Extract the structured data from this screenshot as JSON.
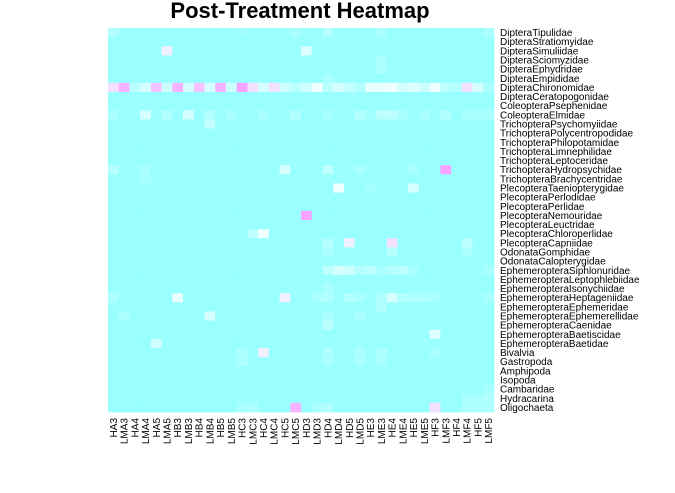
{
  "chart_data": {
    "type": "heatmap",
    "title": "Post-Treatment Heatmap",
    "columns": [
      "HA3",
      "LMA3",
      "HA4",
      "LMA4",
      "HA5",
      "LMA5",
      "HB3",
      "LMB3",
      "HB4",
      "LMB4",
      "HB5",
      "LMB5",
      "HC3",
      "LMC3",
      "HC4",
      "LMC4",
      "HC5",
      "LMC5",
      "HD3",
      "LMD3",
      "HD4",
      "LMD4",
      "HD5",
      "LMD5",
      "HE3",
      "LME3",
      "HE4",
      "LME4",
      "HE5",
      "LME5",
      "HF3",
      "LMF3",
      "HF4",
      "LMF4",
      "HF5",
      "LMF5"
    ],
    "rows": [
      "DipteraTipulidae",
      "DipteraStratiomyidae",
      "DipteraSimuliidae",
      "DipteraSciomyzidae",
      "DipteraEphydridae",
      "DipteraEmpididae",
      "DipteraChironomidae",
      "DipteraCeratopogonidae",
      "ColeopteraPsephenidae",
      "ColeopteraElmidae",
      "TrichopteraPsychomyiidae",
      "TrichopteraPolycentropodidae",
      "TrichopteraPhilopotamidae",
      "TrichopteraLimnephilidae",
      "TrichopteraLeptoceridae",
      "TrichopteraHydropsychidae",
      "TrichopteraBrachycentridae",
      "PlecopteraTaeniopterygidae",
      "PlecopteraPerlodidae",
      "PlecopteraPerlidae",
      "PlecopteraNemouridae",
      "PlecopteraLeuctridae",
      "PlecopteraChloroperlidae",
      "PlecopteraCapniidae",
      "OdonataGomphidae",
      "OdonataCalopterygidae",
      "EphemeropteraSiphlonuridae",
      "EphemeropteraLeptophlebiidae",
      "EphemeropteraIsonychiidae",
      "EphemeropteraHeptageniidae",
      "EphemeropteraEphemeridae",
      "EphemeropteraEphemerellidae",
      "EphemeropteraCaenidae",
      "EphemeropteraBaetiscidae",
      "EphemeropteraBaetidae",
      "Bivalvia",
      "Gastropoda",
      "Amphipoda",
      "Isopoda",
      "Cambaridae",
      "Hydracarina",
      "Oligochaeta"
    ],
    "value_range": [
      0,
      1
    ],
    "color_low": "#99ffff",
    "color_high": "#ff66ff",
    "background": "#ffffff",
    "cells": [
      [
        0.15,
        0,
        0,
        0,
        0,
        0,
        0,
        0,
        0,
        0,
        0,
        0,
        0.05,
        0,
        0,
        0,
        0,
        0.08,
        0,
        0,
        0.15,
        0,
        0,
        0,
        0,
        0.1,
        0,
        0,
        0,
        0,
        0,
        0,
        0,
        0,
        0,
        0.1
      ],
      [
        0,
        0,
        0,
        0,
        0,
        0,
        0,
        0,
        0,
        0,
        0,
        0,
        0,
        0,
        0,
        0,
        0,
        0,
        0,
        0,
        0,
        0,
        0,
        0,
        0,
        0,
        0,
        0,
        0,
        0,
        0,
        0,
        0,
        0,
        0,
        0
      ],
      [
        0,
        0,
        0,
        0,
        0,
        0.55,
        0,
        0,
        0,
        0,
        0,
        0,
        0,
        0,
        0,
        0,
        0,
        0,
        0.4,
        0,
        0,
        0,
        0,
        0,
        0,
        0,
        0,
        0,
        0,
        0,
        0,
        0,
        0,
        0,
        0,
        0
      ],
      [
        0,
        0,
        0,
        0,
        0,
        0,
        0,
        0,
        0,
        0,
        0,
        0,
        0,
        0,
        0,
        0,
        0,
        0,
        0,
        0,
        0,
        0,
        0,
        0,
        0,
        0.1,
        0,
        0,
        0,
        0,
        0,
        0,
        0,
        0,
        0,
        0
      ],
      [
        0,
        0,
        0,
        0,
        0,
        0,
        0,
        0,
        0,
        0,
        0,
        0,
        0,
        0,
        0,
        0,
        0,
        0,
        0,
        0,
        0,
        0,
        0,
        0,
        0,
        0.12,
        0,
        0,
        0,
        0,
        0,
        0,
        0,
        0,
        0,
        0
      ],
      [
        0,
        0,
        0,
        0,
        0,
        0,
        0,
        0,
        0,
        0,
        0,
        0,
        0,
        0,
        0,
        0,
        0,
        0,
        0,
        0,
        0.1,
        0,
        0,
        0,
        0,
        0,
        0,
        0,
        0,
        0,
        0,
        0,
        0,
        0,
        0,
        0
      ],
      [
        0.6,
        0.75,
        0.2,
        0.35,
        0.7,
        0.3,
        0.75,
        0.35,
        0.7,
        0.35,
        0.75,
        0.3,
        0.8,
        0.6,
        0.35,
        0.6,
        0.3,
        0.2,
        0.3,
        0.5,
        0.2,
        0.35,
        0.25,
        0.15,
        0.45,
        0.45,
        0.5,
        0.35,
        0.4,
        0.3,
        0.5,
        0.2,
        0.15,
        0.6,
        0.35,
        0.1
      ],
      [
        0,
        0,
        0,
        0,
        0,
        0,
        0,
        0,
        0,
        0,
        0,
        0,
        0,
        0,
        0,
        0,
        0,
        0,
        0,
        0,
        0,
        0,
        0,
        0,
        0,
        0,
        0,
        0,
        0,
        0,
        0,
        0,
        0,
        0,
        0,
        0
      ],
      [
        0,
        0,
        0,
        0,
        0,
        0,
        0,
        0,
        0,
        0,
        0,
        0,
        0,
        0,
        0,
        0,
        0,
        0,
        0,
        0,
        0,
        0,
        0,
        0,
        0,
        0,
        0,
        0,
        0,
        0,
        0,
        0,
        0,
        0,
        0,
        0
      ],
      [
        0.1,
        0,
        0,
        0.35,
        0,
        0.15,
        0,
        0.35,
        0,
        0.15,
        0,
        0.1,
        0,
        0,
        0.1,
        0,
        0,
        0.15,
        0,
        0,
        0.1,
        0,
        0,
        0.15,
        0.05,
        0.2,
        0.2,
        0.1,
        0,
        0.1,
        0,
        0.15,
        0,
        0.1,
        0.1,
        0.1
      ],
      [
        0,
        0,
        0,
        0,
        0,
        0,
        0,
        0,
        0,
        0.25,
        0,
        0,
        0,
        0,
        0,
        0,
        0,
        0,
        0,
        0,
        0,
        0,
        0,
        0,
        0,
        0,
        0,
        0,
        0,
        0,
        0,
        0,
        0,
        0,
        0,
        0
      ],
      [
        0,
        0,
        0,
        0,
        0,
        0,
        0,
        0,
        0,
        0,
        0,
        0,
        0,
        0,
        0,
        0,
        0,
        0,
        0,
        0,
        0,
        0,
        0,
        0,
        0,
        0,
        0,
        0,
        0,
        0,
        0,
        0,
        0,
        0,
        0,
        0
      ],
      [
        0,
        0,
        0,
        0,
        0,
        0,
        0,
        0,
        0,
        0,
        0,
        0,
        0,
        0,
        0,
        0,
        0,
        0,
        0,
        0,
        0,
        0,
        0,
        0,
        0,
        0,
        0,
        0,
        0,
        0,
        0,
        0,
        0,
        0,
        0,
        0
      ],
      [
        0,
        0,
        0,
        0,
        0,
        0,
        0,
        0,
        0,
        0,
        0,
        0,
        0,
        0,
        0,
        0,
        0,
        0,
        0,
        0,
        0,
        0,
        0,
        0,
        0,
        0,
        0,
        0,
        0,
        0,
        0,
        0,
        0,
        0,
        0,
        0
      ],
      [
        0,
        0,
        0,
        0,
        0,
        0,
        0,
        0,
        0,
        0,
        0,
        0,
        0,
        0,
        0,
        0,
        0,
        0,
        0,
        0,
        0,
        0,
        0,
        0,
        0,
        0,
        0,
        0,
        0,
        0,
        0,
        0,
        0,
        0,
        0,
        0
      ],
      [
        0.15,
        0,
        0,
        0.1,
        0,
        0,
        0,
        0,
        0,
        0,
        0,
        0,
        0,
        0,
        0,
        0,
        0.35,
        0,
        0,
        0,
        0.2,
        0,
        0,
        0.1,
        0,
        0,
        0,
        0,
        0.1,
        0,
        0,
        0.8,
        0,
        0,
        0,
        0
      ],
      [
        0,
        0,
        0,
        0.08,
        0,
        0,
        0,
        0,
        0,
        0,
        0,
        0,
        0,
        0,
        0,
        0,
        0,
        0,
        0,
        0,
        0,
        0,
        0,
        0,
        0,
        0,
        0,
        0,
        0,
        0,
        0,
        0,
        0,
        0,
        0,
        0
      ],
      [
        0,
        0,
        0,
        0,
        0,
        0,
        0,
        0,
        0,
        0,
        0,
        0,
        0,
        0,
        0,
        0,
        0,
        0,
        0,
        0,
        0,
        0.5,
        0,
        0,
        0.08,
        0,
        0,
        0,
        0.35,
        0,
        0,
        0,
        0,
        0,
        0,
        0
      ],
      [
        0,
        0,
        0,
        0,
        0,
        0,
        0,
        0,
        0,
        0,
        0,
        0,
        0,
        0,
        0,
        0,
        0,
        0,
        0,
        0,
        0,
        0,
        0,
        0,
        0,
        0,
        0,
        0,
        0,
        0,
        0,
        0,
        0,
        0,
        0,
        0
      ],
      [
        0,
        0,
        0,
        0,
        0,
        0,
        0,
        0,
        0,
        0,
        0,
        0,
        0,
        0,
        0,
        0,
        0,
        0,
        0,
        0,
        0,
        0,
        0,
        0,
        0,
        0,
        0,
        0,
        0,
        0,
        0,
        0,
        0,
        0,
        0,
        0
      ],
      [
        0,
        0,
        0,
        0,
        0,
        0,
        0,
        0,
        0,
        0,
        0,
        0,
        0,
        0,
        0,
        0,
        0,
        0,
        0.8,
        0,
        0,
        0,
        0,
        0,
        0,
        0,
        0,
        0,
        0,
        0,
        0,
        0,
        0,
        0,
        0,
        0
      ],
      [
        0,
        0,
        0,
        0,
        0,
        0,
        0,
        0,
        0,
        0,
        0,
        0,
        0,
        0,
        0,
        0,
        0,
        0,
        0,
        0,
        0,
        0,
        0,
        0,
        0,
        0,
        0,
        0,
        0,
        0,
        0,
        0,
        0,
        0,
        0,
        0
      ],
      [
        0,
        0,
        0,
        0,
        0,
        0,
        0,
        0,
        0,
        0,
        0,
        0,
        0,
        0.2,
        0.5,
        0,
        0,
        0,
        0,
        0,
        0,
        0,
        0,
        0,
        0,
        0,
        0,
        0,
        0,
        0,
        0,
        0,
        0,
        0,
        0,
        0
      ],
      [
        0,
        0,
        0,
        0,
        0,
        0,
        0,
        0,
        0,
        0,
        0,
        0,
        0,
        0,
        0,
        0,
        0,
        0,
        0,
        0,
        0.15,
        0,
        0.55,
        0,
        0,
        0,
        0.6,
        0,
        0,
        0,
        0,
        0,
        0,
        0.2,
        0,
        0
      ],
      [
        0,
        0,
        0,
        0,
        0,
        0,
        0,
        0,
        0,
        0,
        0,
        0,
        0,
        0,
        0,
        0,
        0,
        0,
        0,
        0,
        0.1,
        0,
        0,
        0,
        0,
        0,
        0.15,
        0,
        0,
        0,
        0,
        0,
        0,
        0.1,
        0,
        0
      ],
      [
        0,
        0,
        0,
        0,
        0,
        0,
        0,
        0,
        0,
        0,
        0,
        0,
        0,
        0,
        0,
        0,
        0,
        0,
        0,
        0,
        0,
        0,
        0,
        0,
        0,
        0,
        0,
        0,
        0,
        0,
        0,
        0,
        0,
        0,
        0,
        0
      ],
      [
        0,
        0,
        0,
        0,
        0,
        0,
        0,
        0,
        0,
        0,
        0,
        0,
        0,
        0,
        0,
        0,
        0,
        0,
        0,
        0,
        0.2,
        0.35,
        0.3,
        0.15,
        0.2,
        0.1,
        0.15,
        0.2,
        0.1,
        0,
        0,
        0,
        0,
        0,
        0,
        0.1
      ],
      [
        0,
        0,
        0,
        0,
        0,
        0,
        0,
        0,
        0,
        0,
        0,
        0,
        0,
        0,
        0,
        0,
        0,
        0,
        0,
        0,
        0,
        0,
        0,
        0,
        0,
        0,
        0,
        0,
        0,
        0,
        0,
        0,
        0,
        0,
        0,
        0
      ],
      [
        0,
        0,
        0,
        0,
        0,
        0,
        0,
        0,
        0,
        0,
        0,
        0,
        0,
        0,
        0,
        0,
        0,
        0,
        0,
        0,
        0.1,
        0,
        0,
        0,
        0,
        0,
        0,
        0,
        0,
        0,
        0,
        0,
        0,
        0,
        0,
        0
      ],
      [
        0.12,
        0,
        0,
        0,
        0,
        0,
        0.45,
        0,
        0,
        0,
        0,
        0,
        0,
        0,
        0,
        0,
        0.55,
        0,
        0,
        0.1,
        0.15,
        0,
        0.15,
        0.1,
        0,
        0.12,
        0.35,
        0.15,
        0.12,
        0.12,
        0.1,
        0,
        0,
        0,
        0,
        0.1
      ],
      [
        0,
        0,
        0,
        0,
        0,
        0,
        0,
        0,
        0,
        0,
        0,
        0,
        0,
        0,
        0,
        0,
        0,
        0,
        0,
        0,
        0,
        0,
        0,
        0,
        0,
        0.15,
        0,
        0,
        0,
        0,
        0,
        0,
        0,
        0,
        0,
        0
      ],
      [
        0,
        0.1,
        0,
        0,
        0,
        0,
        0,
        0,
        0,
        0.35,
        0,
        0,
        0,
        0,
        0,
        0,
        0,
        0,
        0,
        0,
        0.1,
        0,
        0,
        0.1,
        0,
        0,
        0,
        0,
        0,
        0,
        0,
        0,
        0,
        0,
        0,
        0
      ],
      [
        0,
        0,
        0,
        0,
        0,
        0,
        0,
        0,
        0,
        0,
        0,
        0,
        0,
        0,
        0,
        0,
        0,
        0,
        0,
        0,
        0.2,
        0,
        0,
        0,
        0,
        0,
        0,
        0,
        0,
        0,
        0,
        0,
        0,
        0,
        0,
        0
      ],
      [
        0,
        0,
        0,
        0,
        0,
        0,
        0,
        0,
        0,
        0,
        0,
        0,
        0,
        0,
        0,
        0,
        0,
        0,
        0,
        0,
        0,
        0,
        0,
        0,
        0,
        0,
        0,
        0,
        0,
        0,
        0.4,
        0,
        0,
        0,
        0,
        0
      ],
      [
        0,
        0,
        0,
        0,
        0.3,
        0,
        0,
        0,
        0,
        0,
        0,
        0,
        0,
        0,
        0,
        0,
        0,
        0,
        0,
        0,
        0,
        0,
        0,
        0,
        0,
        0,
        0,
        0,
        0,
        0,
        0,
        0,
        0,
        0,
        0,
        0
      ],
      [
        0,
        0,
        0,
        0,
        0,
        0,
        0,
        0,
        0,
        0,
        0,
        0,
        0.12,
        0,
        0.55,
        0,
        0,
        0,
        0,
        0,
        0.12,
        0,
        0,
        0.1,
        0,
        0.12,
        0,
        0,
        0,
        0,
        0.1,
        0,
        0,
        0,
        0,
        0
      ],
      [
        0,
        0,
        0,
        0,
        0,
        0,
        0,
        0,
        0,
        0,
        0,
        0,
        0.12,
        0,
        0,
        0,
        0,
        0,
        0,
        0,
        0.1,
        0,
        0,
        0.1,
        0,
        0.1,
        0,
        0,
        0,
        0,
        0,
        0,
        0,
        0,
        0,
        0
      ],
      [
        0,
        0,
        0,
        0,
        0,
        0,
        0,
        0,
        0,
        0,
        0,
        0,
        0,
        0,
        0,
        0,
        0,
        0,
        0,
        0,
        0,
        0,
        0,
        0,
        0,
        0,
        0,
        0,
        0,
        0,
        0,
        0,
        0,
        0,
        0,
        0
      ],
      [
        0,
        0,
        0,
        0,
        0,
        0,
        0,
        0,
        0,
        0,
        0,
        0,
        0,
        0,
        0,
        0,
        0,
        0,
        0,
        0,
        0,
        0,
        0,
        0,
        0,
        0,
        0,
        0,
        0,
        0,
        0,
        0,
        0,
        0,
        0,
        0
      ],
      [
        0,
        0,
        0,
        0,
        0,
        0,
        0,
        0,
        0,
        0,
        0,
        0,
        0,
        0,
        0,
        0,
        0,
        0,
        0,
        0,
        0,
        0,
        0,
        0,
        0,
        0,
        0,
        0,
        0,
        0,
        0,
        0,
        0,
        0,
        0,
        0.08
      ],
      [
        0,
        0,
        0,
        0,
        0,
        0,
        0,
        0,
        0,
        0,
        0,
        0,
        0,
        0,
        0,
        0,
        0,
        0,
        0,
        0,
        0,
        0,
        0,
        0,
        0,
        0,
        0,
        0,
        0,
        0,
        0,
        0,
        0,
        0.1,
        0.1,
        0.15
      ],
      [
        0,
        0,
        0,
        0,
        0,
        0,
        0,
        0,
        0,
        0,
        0,
        0,
        0.1,
        0.12,
        0,
        0,
        0,
        0.75,
        0,
        0.1,
        0.15,
        0,
        0,
        0,
        0,
        0,
        0,
        0,
        0,
        0,
        0.6,
        0,
        0,
        0.12,
        0.12,
        0.12
      ]
    ]
  }
}
